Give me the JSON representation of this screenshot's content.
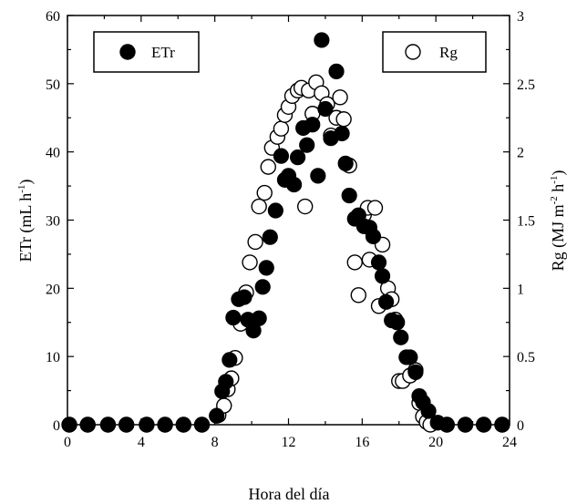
{
  "chart_data": {
    "type": "scatter",
    "xlabel": "Hora del día",
    "ylabel_left": {
      "main": "ETr (mL h",
      "sup": "-1",
      "close": ")"
    },
    "ylabel_right": {
      "main": "Rg (MJ m",
      "sup1": "-2",
      "mid": " h",
      "sup2": "-1",
      "close": ")"
    },
    "x_range": [
      0,
      24
    ],
    "y_left_range": [
      0,
      60
    ],
    "y_right_range": [
      0,
      3
    ],
    "x_ticks": [
      0,
      4,
      8,
      12,
      16,
      20,
      24
    ],
    "y_left_ticks": [
      0,
      10,
      20,
      30,
      40,
      50,
      60
    ],
    "y_right_ticks": [
      "0",
      "0.5",
      "1",
      "1.5",
      "2",
      "2.5",
      "3"
    ],
    "y_right_tick_values": [
      0,
      0.5,
      1,
      1.5,
      2,
      2.5,
      3
    ],
    "grid": false,
    "series": [
      {
        "name": "ETr",
        "marker": "filled-circle",
        "color": "#000000",
        "axis": "left",
        "points": [
          [
            0.1,
            0
          ],
          [
            1.1,
            0
          ],
          [
            2.2,
            0
          ],
          [
            3.2,
            0
          ],
          [
            4.3,
            0
          ],
          [
            5.3,
            0
          ],
          [
            6.3,
            0
          ],
          [
            7.3,
            0
          ],
          [
            8.1,
            1.3
          ],
          [
            8.4,
            4.9
          ],
          [
            8.6,
            6.3
          ],
          [
            8.8,
            9.5
          ],
          [
            9.0,
            15.7
          ],
          [
            9.3,
            18.4
          ],
          [
            9.6,
            18.7
          ],
          [
            9.8,
            15.4
          ],
          [
            10.1,
            13.8
          ],
          [
            10.4,
            15.6
          ],
          [
            10.6,
            20.2
          ],
          [
            10.8,
            23.0
          ],
          [
            11.0,
            27.5
          ],
          [
            11.3,
            31.4
          ],
          [
            11.6,
            39.4
          ],
          [
            11.8,
            35.9
          ],
          [
            12.0,
            36.5
          ],
          [
            12.3,
            35.2
          ],
          [
            12.5,
            39.2
          ],
          [
            12.8,
            43.5
          ],
          [
            13.0,
            41.0
          ],
          [
            13.3,
            44.0
          ],
          [
            13.6,
            36.5
          ],
          [
            13.8,
            56.4
          ],
          [
            14.0,
            46.3
          ],
          [
            14.3,
            42.0
          ],
          [
            14.6,
            51.8
          ],
          [
            14.9,
            42.7
          ],
          [
            15.1,
            38.3
          ],
          [
            15.3,
            33.6
          ],
          [
            15.6,
            30.2
          ],
          [
            15.8,
            30.7
          ],
          [
            16.1,
            29.1
          ],
          [
            16.4,
            28.9
          ],
          [
            16.6,
            27.6
          ],
          [
            16.9,
            23.8
          ],
          [
            17.1,
            21.8
          ],
          [
            17.3,
            18.0
          ],
          [
            17.6,
            15.3
          ],
          [
            17.9,
            15.0
          ],
          [
            18.1,
            12.8
          ],
          [
            18.4,
            9.9
          ],
          [
            18.6,
            9.9
          ],
          [
            18.9,
            7.7
          ],
          [
            19.1,
            4.2
          ],
          [
            19.3,
            3.3
          ],
          [
            19.6,
            2.0
          ],
          [
            20.1,
            0.3
          ],
          [
            20.6,
            0
          ],
          [
            21.6,
            0
          ],
          [
            22.6,
            0
          ],
          [
            23.6,
            0
          ]
        ]
      },
      {
        "name": "Rg",
        "marker": "open-circle",
        "color": "#000000",
        "axis": "right",
        "points": [
          [
            0.1,
            0
          ],
          [
            1.1,
            0
          ],
          [
            2.2,
            0
          ],
          [
            3.2,
            0
          ],
          [
            4.3,
            0
          ],
          [
            5.3,
            0
          ],
          [
            6.3,
            0
          ],
          [
            7.3,
            0
          ],
          [
            8.2,
            0.07
          ],
          [
            8.5,
            0.14
          ],
          [
            8.7,
            0.26
          ],
          [
            8.9,
            0.34
          ],
          [
            9.1,
            0.49
          ],
          [
            9.4,
            0.74
          ],
          [
            9.7,
            0.97
          ],
          [
            9.9,
            1.19
          ],
          [
            10.2,
            1.34
          ],
          [
            10.4,
            1.6
          ],
          [
            10.7,
            1.7
          ],
          [
            10.9,
            1.89
          ],
          [
            11.1,
            2.03
          ],
          [
            11.4,
            2.11
          ],
          [
            11.6,
            2.17
          ],
          [
            11.8,
            2.27
          ],
          [
            12.0,
            2.33
          ],
          [
            12.2,
            2.41
          ],
          [
            12.5,
            2.45
          ],
          [
            12.7,
            2.47
          ],
          [
            12.9,
            1.6
          ],
          [
            13.1,
            2.45
          ],
          [
            13.3,
            2.28
          ],
          [
            13.5,
            2.51
          ],
          [
            13.8,
            2.43
          ],
          [
            14.1,
            2.35
          ],
          [
            14.3,
            2.12
          ],
          [
            14.6,
            2.25
          ],
          [
            14.8,
            2.4
          ],
          [
            15.0,
            2.24
          ],
          [
            15.3,
            1.9
          ],
          [
            15.6,
            1.19
          ],
          [
            15.8,
            0.95
          ],
          [
            16.1,
            1.54
          ],
          [
            16.3,
            1.59
          ],
          [
            16.4,
            1.21
          ],
          [
            16.7,
            1.59
          ],
          [
            16.9,
            0.87
          ],
          [
            17.1,
            1.32
          ],
          [
            17.4,
            1.0
          ],
          [
            17.6,
            0.92
          ],
          [
            17.8,
            0.77
          ],
          [
            18.0,
            0.32
          ],
          [
            18.2,
            0.32
          ],
          [
            18.6,
            0.36
          ],
          [
            18.9,
            0.4
          ],
          [
            19.1,
            0.16
          ],
          [
            19.3,
            0.06
          ],
          [
            19.5,
            0.02
          ],
          [
            19.7,
            0.0
          ],
          [
            20.6,
            0
          ],
          [
            21.6,
            0
          ],
          [
            22.6,
            0
          ],
          [
            23.6,
            0
          ]
        ]
      }
    ],
    "legend": [
      {
        "label": "ETr",
        "marker": "filled",
        "placement": "top-left"
      },
      {
        "label": "Rg",
        "marker": "open",
        "placement": "top-right"
      }
    ]
  }
}
